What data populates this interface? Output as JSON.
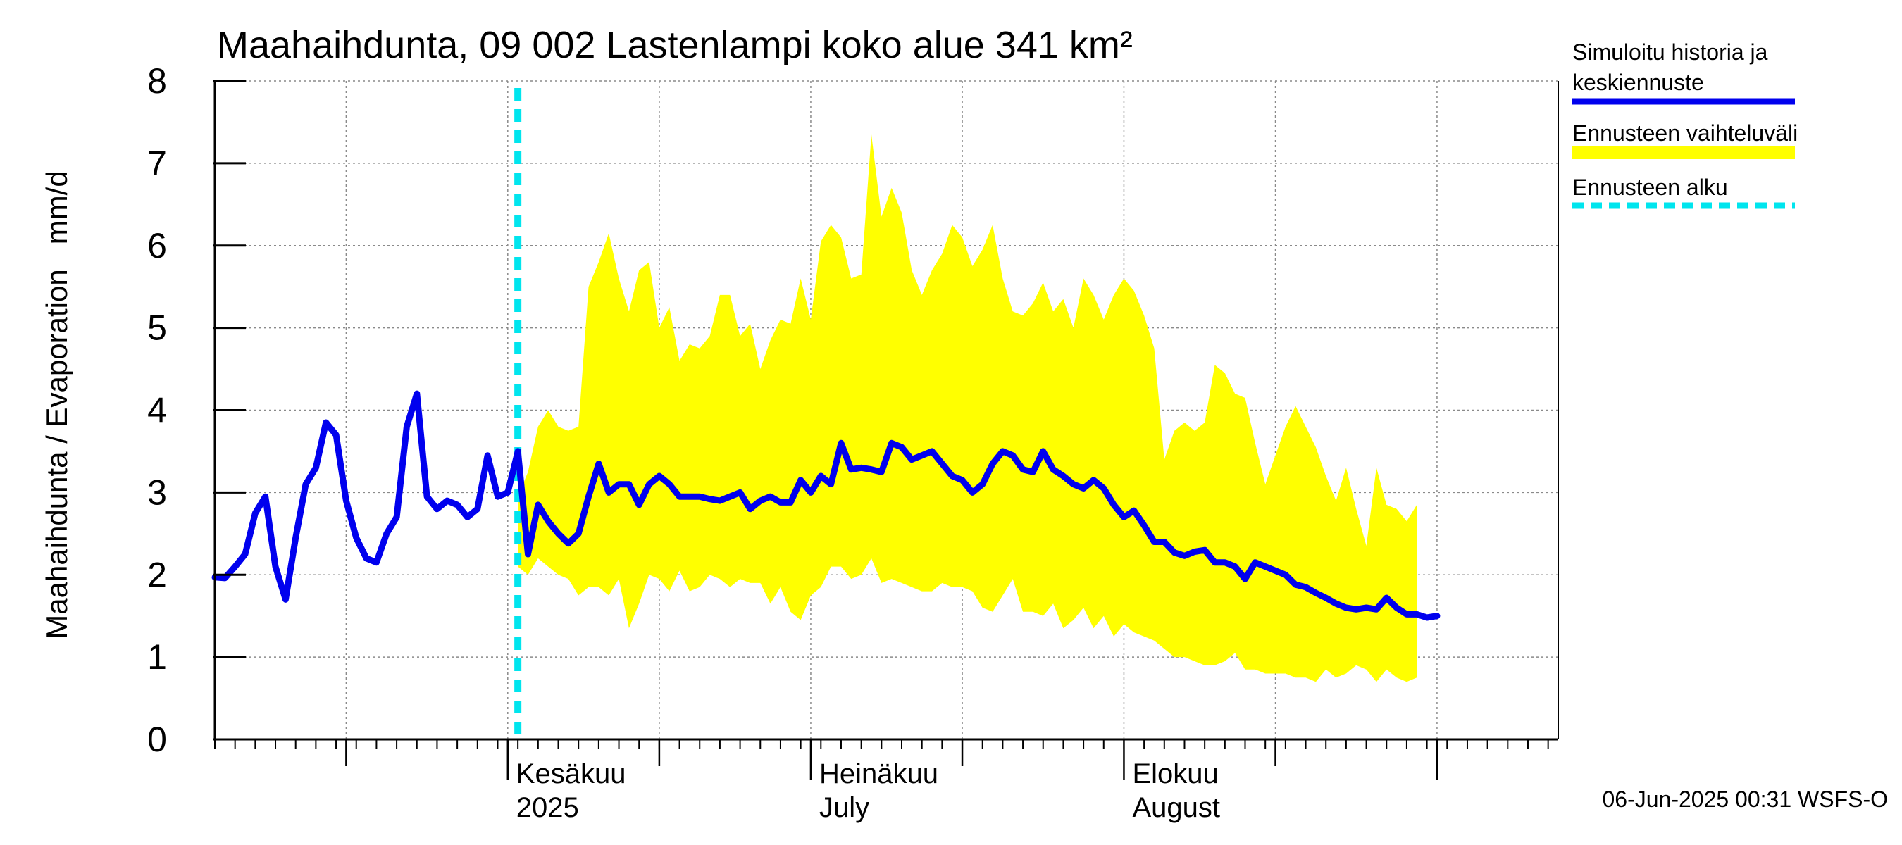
{
  "chart_data": {
    "type": "area",
    "title": "Maahaihdunta, 09 002 Lastenlampi koko alue 341 km²",
    "ylabel": "Maahaihdunta / Evaporation   mm/d",
    "ylim": [
      0,
      8
    ],
    "yticks": [
      0,
      1,
      2,
      3,
      4,
      5,
      6,
      7,
      8
    ],
    "xlim": [
      "2025-05-03",
      "2025-09-13"
    ],
    "x_month_labels": [
      {
        "date": "2025-06-01",
        "line1": "Kesäkuu",
        "line2": "2025"
      },
      {
        "date": "2025-07-01",
        "line1": "Heinäkuu",
        "line2": "July"
      },
      {
        "date": "2025-08-01",
        "line1": "Elokuu",
        "line2": "August"
      }
    ],
    "forecast_start": "2025-06-02",
    "grid": true,
    "legend_position": "right",
    "legend": [
      {
        "label_line1": "Simuloitu historia ja",
        "label_line2": "keskiennuste",
        "color": "#0000ee",
        "style": "solid"
      },
      {
        "label_line1": "Ennusteen vaihteluväli",
        "label_line2": "",
        "color": "#ffff00",
        "style": "band"
      },
      {
        "label_line1": "Ennusteen alku",
        "label_line2": "",
        "color": "#00e5ee",
        "style": "dashed"
      }
    ],
    "series": [
      {
        "name": "Simuloitu historia ja keskiennuste",
        "color": "#0000ee",
        "start_date": "2025-05-03",
        "step_days": 1,
        "values": [
          1.97,
          1.96,
          2.1,
          2.25,
          2.75,
          2.95,
          2.1,
          1.7,
          2.45,
          3.1,
          3.3,
          3.85,
          3.7,
          2.9,
          2.45,
          2.2,
          2.15,
          2.5,
          2.7,
          3.8,
          4.2,
          2.95,
          2.8,
          2.9,
          2.85,
          2.7,
          2.8,
          3.45,
          2.95,
          3.0,
          3.5,
          2.25,
          2.85,
          2.65,
          2.5,
          2.38,
          2.5,
          2.95,
          3.35,
          3.0,
          3.1,
          3.1,
          2.85,
          3.1,
          3.2,
          3.1,
          2.95,
          2.95,
          2.95,
          2.92,
          2.9,
          2.95,
          3.0,
          2.8,
          2.9,
          2.95,
          2.88,
          2.88,
          3.15,
          3.0,
          3.2,
          3.1,
          3.6,
          3.28,
          3.3,
          3.28,
          3.25,
          3.6,
          3.55,
          3.4,
          3.45,
          3.5,
          3.35,
          3.2,
          3.15,
          3.0,
          3.1,
          3.35,
          3.5,
          3.45,
          3.28,
          3.25,
          3.5,
          3.28,
          3.2,
          3.1,
          3.05,
          3.15,
          3.05,
          2.85,
          2.7,
          2.78,
          2.6,
          2.4,
          2.4,
          2.27,
          2.23,
          2.28,
          2.3,
          2.15,
          2.15,
          2.1,
          1.95,
          2.15,
          2.1,
          2.05,
          2.0,
          1.88,
          1.85,
          1.78,
          1.72,
          1.65,
          1.6,
          1.58,
          1.6,
          1.58,
          1.72,
          1.6,
          1.52,
          1.52,
          1.48,
          1.5
        ]
      },
      {
        "name": "Ennusteen vaihteluväli",
        "color": "#ffff00",
        "start_date": "2025-06-02",
        "step_days": 1,
        "upper": [
          2.95,
          3.25,
          3.8,
          4.0,
          3.8,
          3.75,
          3.8,
          5.5,
          5.8,
          6.15,
          5.6,
          5.2,
          5.7,
          5.8,
          5.0,
          5.25,
          4.6,
          4.8,
          4.75,
          4.9,
          5.4,
          5.4,
          4.9,
          5.05,
          4.5,
          4.85,
          5.1,
          5.05,
          5.6,
          5.1,
          6.05,
          6.25,
          6.1,
          5.6,
          5.65,
          7.35,
          6.35,
          6.7,
          6.4,
          5.7,
          5.4,
          5.7,
          5.9,
          6.25,
          6.1,
          5.75,
          5.95,
          6.25,
          5.6,
          5.2,
          5.15,
          5.3,
          5.55,
          5.2,
          5.35,
          5.0,
          5.6,
          5.4,
          5.1,
          5.4,
          5.6,
          5.45,
          5.15,
          4.75,
          3.4,
          3.75,
          3.85,
          3.75,
          3.85,
          4.55,
          4.45,
          4.2,
          4.15,
          3.6,
          3.1,
          3.45,
          3.8,
          4.05,
          3.8,
          3.55,
          3.2,
          2.9,
          3.3,
          2.8,
          2.35,
          3.3,
          2.85,
          2.8,
          2.65,
          2.85
        ],
        "lower": [
          2.1,
          2.0,
          2.2,
          2.1,
          2.0,
          1.95,
          1.75,
          1.85,
          1.85,
          1.75,
          1.95,
          1.35,
          1.65,
          2.0,
          1.95,
          1.8,
          2.05,
          1.8,
          1.85,
          2.0,
          1.95,
          1.85,
          1.95,
          1.9,
          1.9,
          1.65,
          1.85,
          1.55,
          1.45,
          1.75,
          1.85,
          2.1,
          2.1,
          1.95,
          2.0,
          2.2,
          1.9,
          1.95,
          1.9,
          1.85,
          1.8,
          1.8,
          1.9,
          1.85,
          1.85,
          1.8,
          1.6,
          1.55,
          1.75,
          1.95,
          1.55,
          1.55,
          1.5,
          1.65,
          1.35,
          1.45,
          1.6,
          1.35,
          1.5,
          1.25,
          1.4,
          1.3,
          1.25,
          1.2,
          1.1,
          1.0,
          1.0,
          0.95,
          0.9,
          0.9,
          0.95,
          1.05,
          0.85,
          0.85,
          0.8,
          0.8,
          0.8,
          0.75,
          0.75,
          0.7,
          0.85,
          0.75,
          0.8,
          0.9,
          0.85,
          0.7,
          0.85,
          0.75,
          0.7,
          0.75
        ]
      }
    ]
  },
  "footer": {
    "timestamp": "06-Jun-2025 00:31 WSFS-O"
  }
}
